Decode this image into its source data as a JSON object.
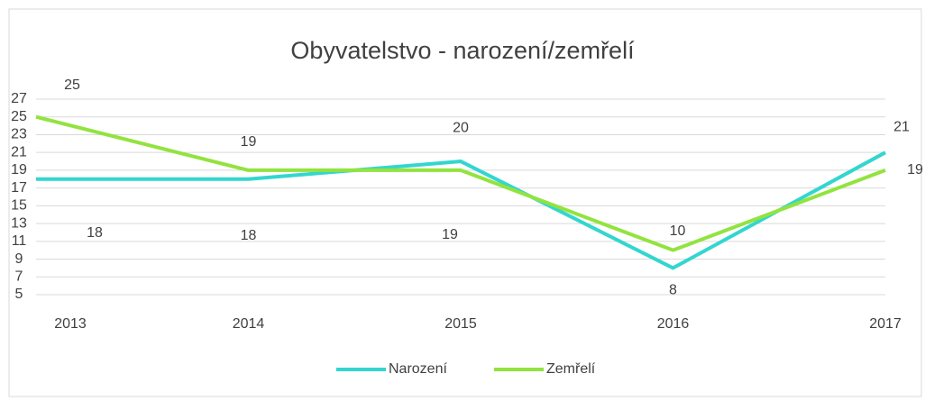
{
  "chart_data": {
    "type": "line",
    "title": "Obyvatelstvo - narození/zemřelí",
    "categories": [
      "2013",
      "2014",
      "2015",
      "2016",
      "2017"
    ],
    "series": [
      {
        "name": "Narození",
        "color": "#33d6cf",
        "values": [
          18,
          18,
          20,
          8,
          21
        ]
      },
      {
        "name": "Zemřelí",
        "color": "#92e33f",
        "values": [
          25,
          19,
          19,
          10,
          19
        ]
      }
    ],
    "ylim": [
      5,
      27
    ],
    "yticks": [
      5,
      7,
      9,
      11,
      13,
      15,
      17,
      19,
      21,
      23,
      25,
      27
    ],
    "grid": true,
    "legend": "bottom"
  }
}
